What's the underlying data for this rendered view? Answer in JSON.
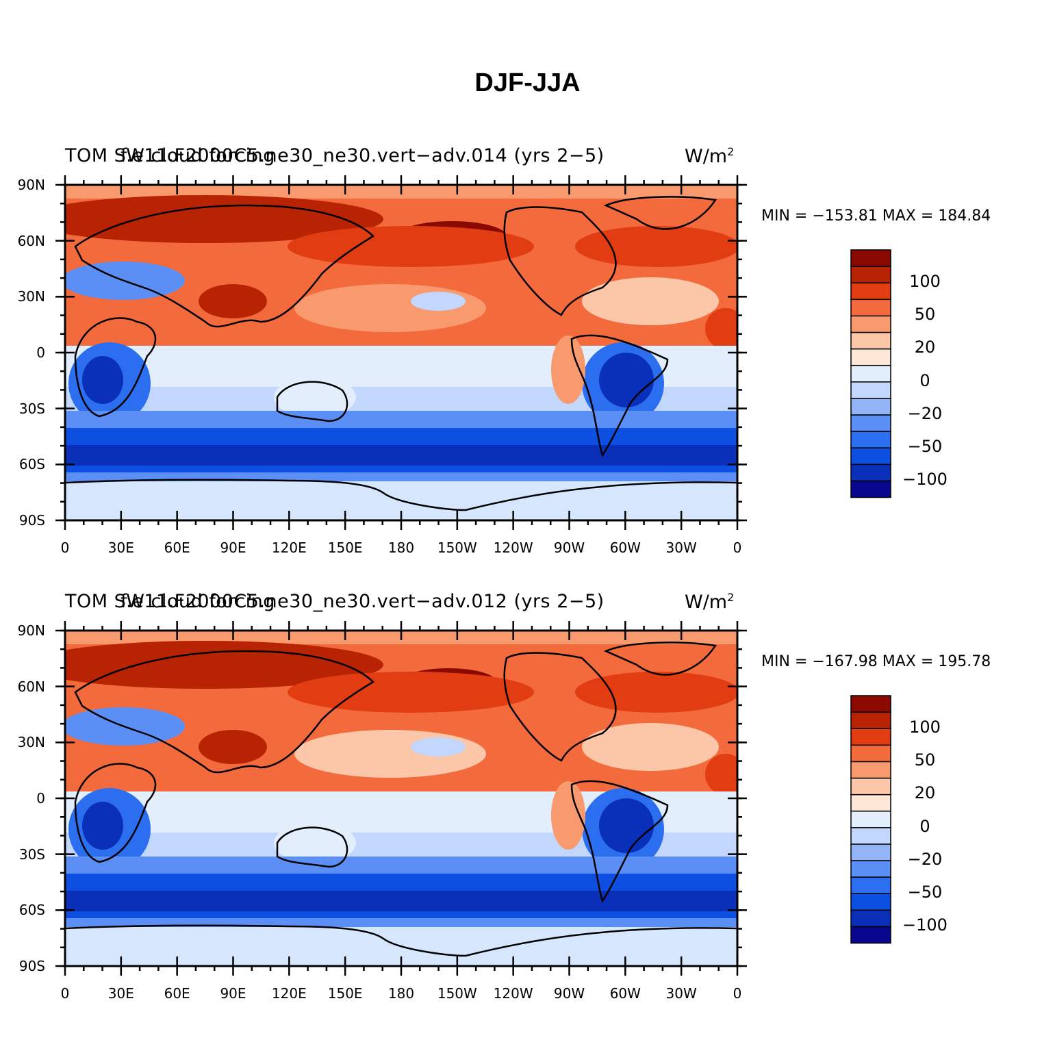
{
  "title": "DJF-JJA",
  "lat_ticks": [
    "90N",
    "60N",
    "30N",
    "0",
    "30S",
    "60S",
    "90S"
  ],
  "lon_ticks": [
    "0",
    "30E",
    "60E",
    "90E",
    "120E",
    "150E",
    "180",
    "150W",
    "120W",
    "90W",
    "60W",
    "30W",
    "0"
  ],
  "colorbar": {
    "colors": [
      "#08088f",
      "#0a2fb8",
      "#0d4fe0",
      "#2b6ff0",
      "#5b8ff5",
      "#93b5f8",
      "#c3d6fb",
      "#e3eefd",
      "#fde8d8",
      "#fcc6a8",
      "#f99a6e",
      "#f36a3c",
      "#e23d12",
      "#b82304",
      "#8a0a02"
    ],
    "labels": [
      "100",
      "50",
      "20",
      "0",
      "−20",
      "−50",
      "−100"
    ]
  },
  "panels": [
    {
      "left_title": "TOM SW cloud forcing",
      "center_title": "f.e11.F2000C5.ne30_ne30.vert−adv.014 (yrs 2−5)",
      "units": "W/m",
      "units_sup": "2",
      "minmax": "MIN = −153.81 MAX = 184.84"
    },
    {
      "left_title": "TOM SW cloud forcing",
      "center_title": "f.e11.F2000C5.ne30_ne30.vert−adv.012 (yrs 2−5)",
      "units": "W/m",
      "units_sup": "2",
      "minmax": "MIN = −167.98 MAX = 195.78"
    }
  ]
}
